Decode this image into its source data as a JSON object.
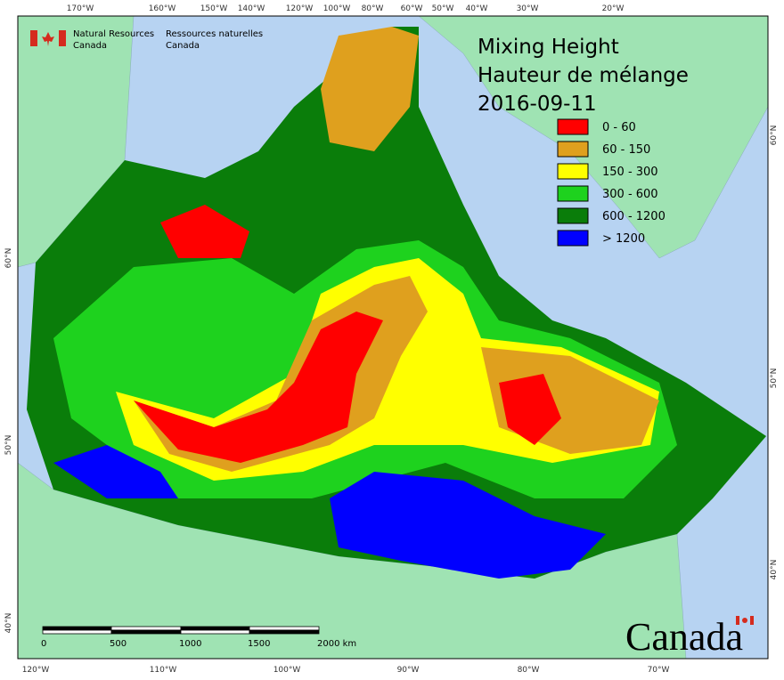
{
  "header": {
    "agency_en": [
      "Natural Resources",
      "Canada"
    ],
    "agency_fr": [
      "Ressources naturelles",
      "Canada"
    ]
  },
  "title": {
    "lines": [
      "Mixing Height",
      "Hauteur de mélange",
      "2016-09-11"
    ]
  },
  "legend": [
    {
      "label": "0 - 60",
      "color": "#ff0000"
    },
    {
      "label": "60 - 150",
      "color": "#dfa01e"
    },
    {
      "label": "150 - 300",
      "color": "#ffff00"
    },
    {
      "label": "300 - 600",
      "color": "#1ed21e"
    },
    {
      "label": "600 - 1200",
      "color": "#0a7d0a"
    },
    {
      "label": "> 1200",
      "color": "#0000ff"
    }
  ],
  "graticule": {
    "top": [
      "170°W",
      "160°W",
      "150°W",
      "140°W",
      "120°W",
      "100°W",
      "80°W",
      "60°W",
      "50°W",
      "40°W",
      "30°W",
      "20°W"
    ],
    "bottom": [
      "120°W",
      "110°W",
      "100°W",
      "90°W",
      "80°W",
      "70°W"
    ],
    "left": [
      "60°N",
      "50°N",
      "40°N"
    ],
    "right": [
      "60°N",
      "50°N",
      "40°N"
    ]
  },
  "scale_bar": {
    "labels": [
      "0",
      "500",
      "1000",
      "1500",
      "2000 km"
    ]
  },
  "wordmark": "Canada"
}
